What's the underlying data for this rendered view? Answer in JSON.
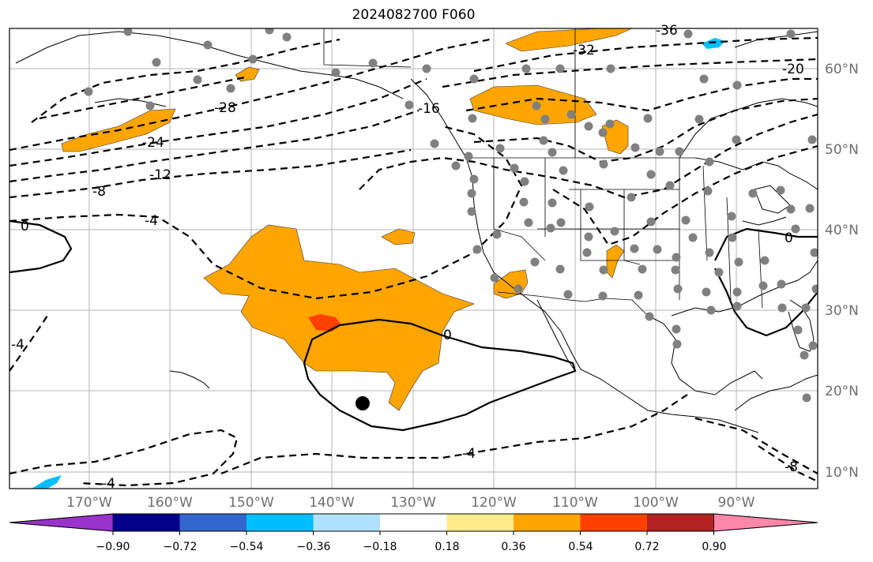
{
  "title": "2024082700 F060",
  "lon_labels": [
    "170°W",
    "160°W",
    "150°W",
    "140°W",
    "130°W",
    "120°W",
    "110°W",
    "100°W",
    "90°W"
  ],
  "lat_labels": [
    "60°N",
    "50°N",
    "40°N",
    "30°N",
    "20°N",
    "10°N"
  ],
  "contour_labels": [
    "-36",
    "-32",
    "-28",
    "-24",
    "-20",
    "-16",
    "-12",
    "-8",
    "-4",
    "0",
    "0",
    "0",
    "-4",
    "-4",
    "-8",
    "-4"
  ],
  "colorbar": {
    "ticks": [
      "−0.90",
      "−0.72",
      "−0.54",
      "−0.36",
      "−0.18",
      "0.18",
      "0.36",
      "0.54",
      "0.72",
      "0.90"
    ],
    "colors": [
      "#9933cc",
      "#00008b",
      "#3366cc",
      "#00bfff",
      "#b0e2ff",
      "#ffffff",
      "#ffeb8a",
      "#ffa500",
      "#ff4000",
      "#b22222",
      "#ff88aa"
    ]
  }
}
